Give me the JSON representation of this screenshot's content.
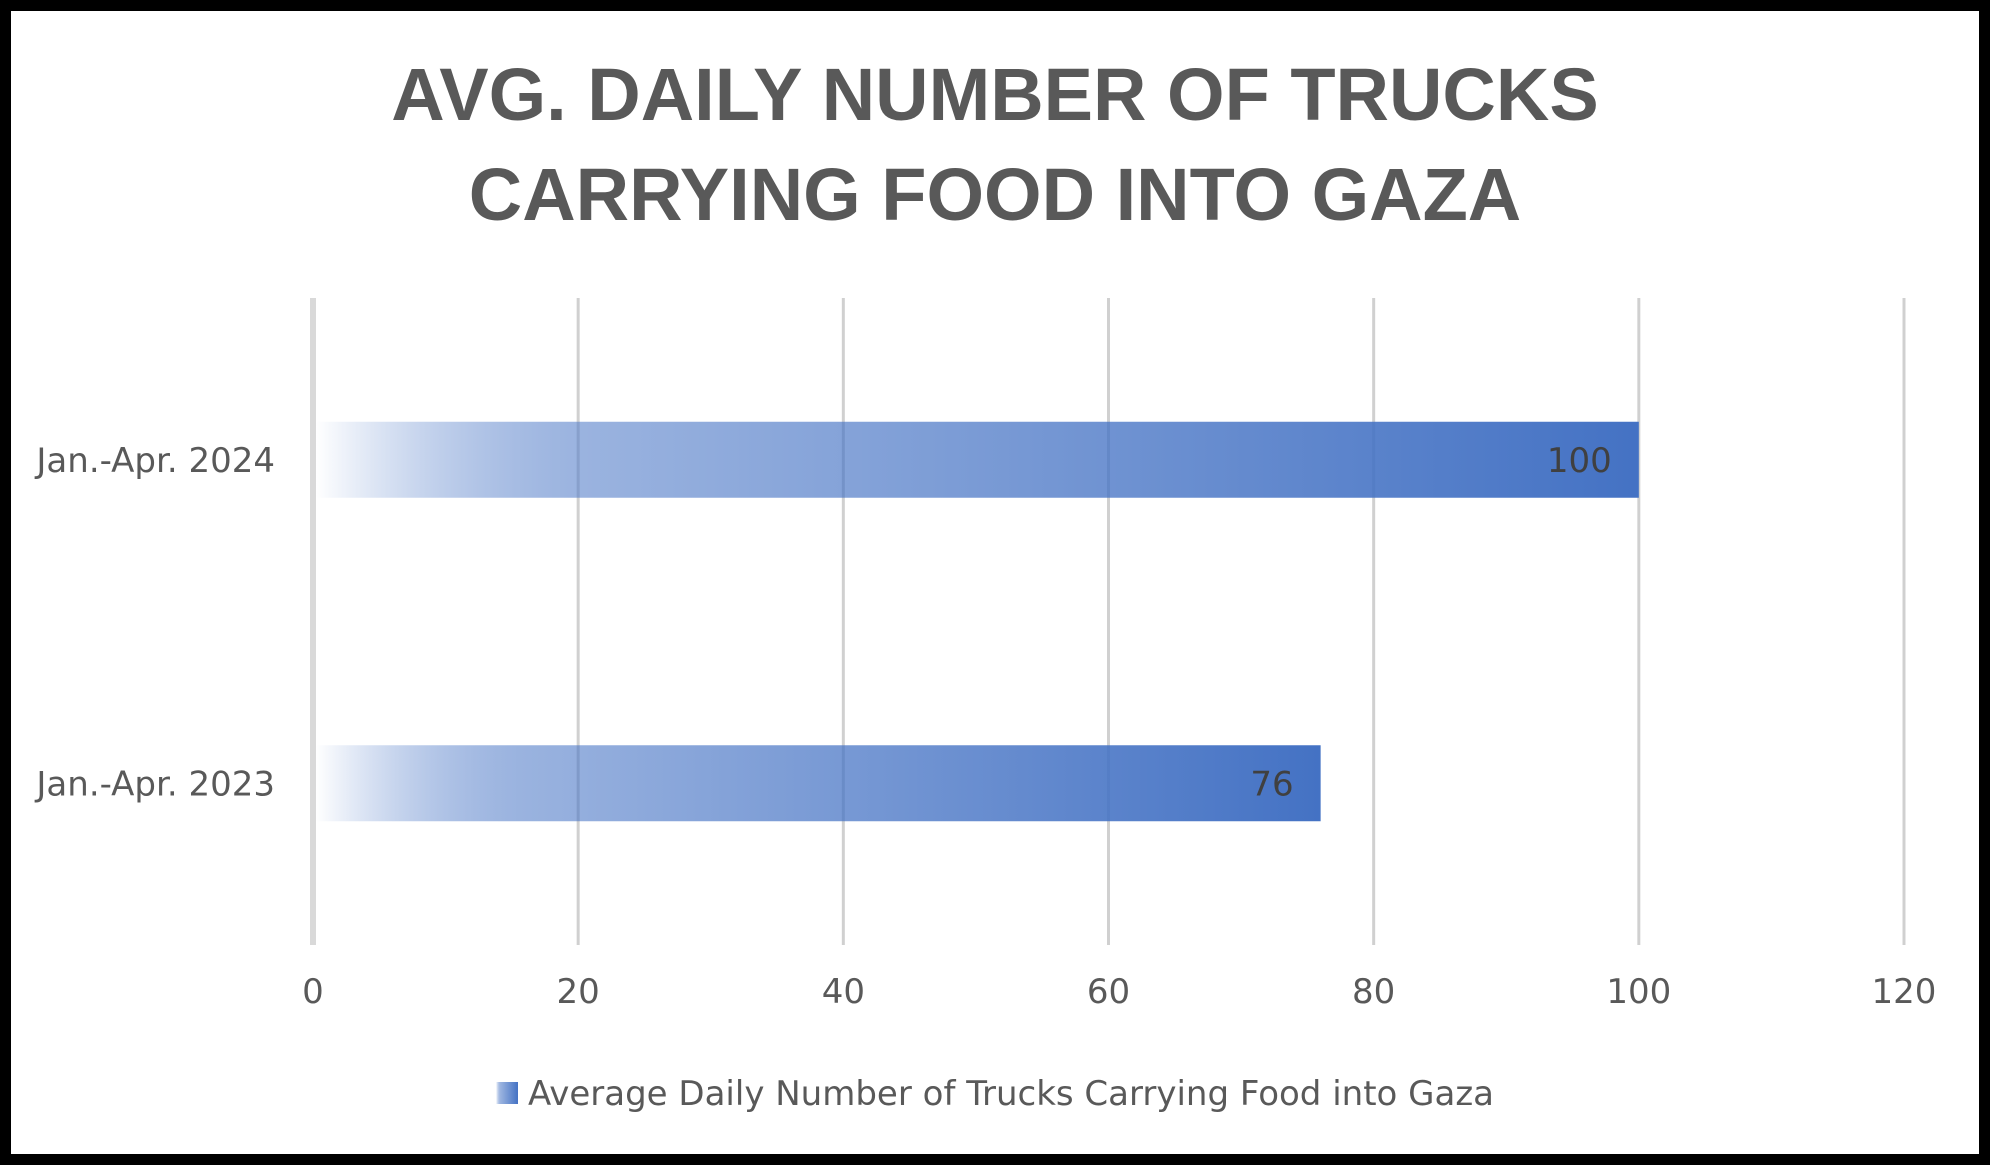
{
  "chart_data": {
    "type": "bar",
    "orientation": "horizontal",
    "title": "AVG. DAILY NUMBER OF TRUCKS CARRYING FOOD INTO GAZA",
    "title_lines": [
      "AVG. DAILY NUMBER OF TRUCKS",
      "CARRYING FOOD INTO GAZA"
    ],
    "categories": [
      "Jan.-Apr. 2024",
      "Jan.-Apr. 2023"
    ],
    "series": [
      {
        "name": "Average Daily Number of Trucks Carrying Food into Gaza",
        "values": [
          100,
          76
        ]
      }
    ],
    "data_labels": [
      "100",
      "76"
    ],
    "xlim": [
      0,
      120
    ],
    "x_ticks": [
      0,
      20,
      40,
      60,
      80,
      100,
      120
    ],
    "x_tick_labels": [
      "0",
      "20",
      "40",
      "60",
      "80",
      "100",
      "120"
    ],
    "grid": true,
    "legend_position": "bottom",
    "colors": {
      "bar": "#4472c4",
      "bar_fade": "#ffffff",
      "grid": "#d0d0d0",
      "axis": "#d9d9d9",
      "text": "#595959",
      "border": "#000000"
    }
  }
}
